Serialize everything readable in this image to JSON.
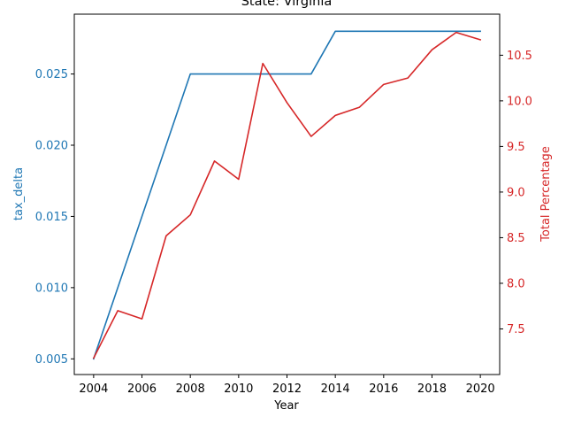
{
  "chart_data": {
    "type": "line",
    "title": "State: Virginia",
    "xlabel": "Year",
    "ylabel_left": "tax_delta",
    "ylabel_right": "Total Percentage",
    "x": [
      2004,
      2005,
      2006,
      2007,
      2008,
      2009,
      2010,
      2011,
      2012,
      2013,
      2014,
      2015,
      2016,
      2017,
      2018,
      2019,
      2020
    ],
    "xlim": [
      2003.2,
      2020.8
    ],
    "x_ticks": [
      "2004",
      "2006",
      "2008",
      "2010",
      "2012",
      "2014",
      "2016",
      "2018",
      "2020"
    ],
    "ylim_left": [
      0.0039,
      0.0292
    ],
    "ylim_right": [
      7.0,
      10.95
    ],
    "y_ticks_left": [
      "0.005",
      "0.010",
      "0.015",
      "0.020",
      "0.025"
    ],
    "y_ticks_right": [
      "7.5",
      "8.0",
      "8.5",
      "9.0",
      "9.5",
      "10.0",
      "10.5"
    ],
    "grid": false,
    "legend": "none",
    "series": [
      {
        "axis": "left",
        "color": "#1f77b4",
        "values": [
          0.005,
          0.01,
          0.015,
          0.02,
          0.025,
          0.025,
          0.025,
          0.025,
          0.025,
          0.025,
          0.028,
          0.028,
          0.028,
          0.028,
          0.028,
          0.028,
          0.028
        ]
      },
      {
        "axis": "right",
        "color": "#d62728",
        "values": [
          7.18,
          7.7,
          7.61,
          8.52,
          8.75,
          9.34,
          9.14,
          10.41,
          9.98,
          9.61,
          9.84,
          9.93,
          10.18,
          10.25,
          10.56,
          10.75,
          10.67
        ]
      }
    ]
  }
}
